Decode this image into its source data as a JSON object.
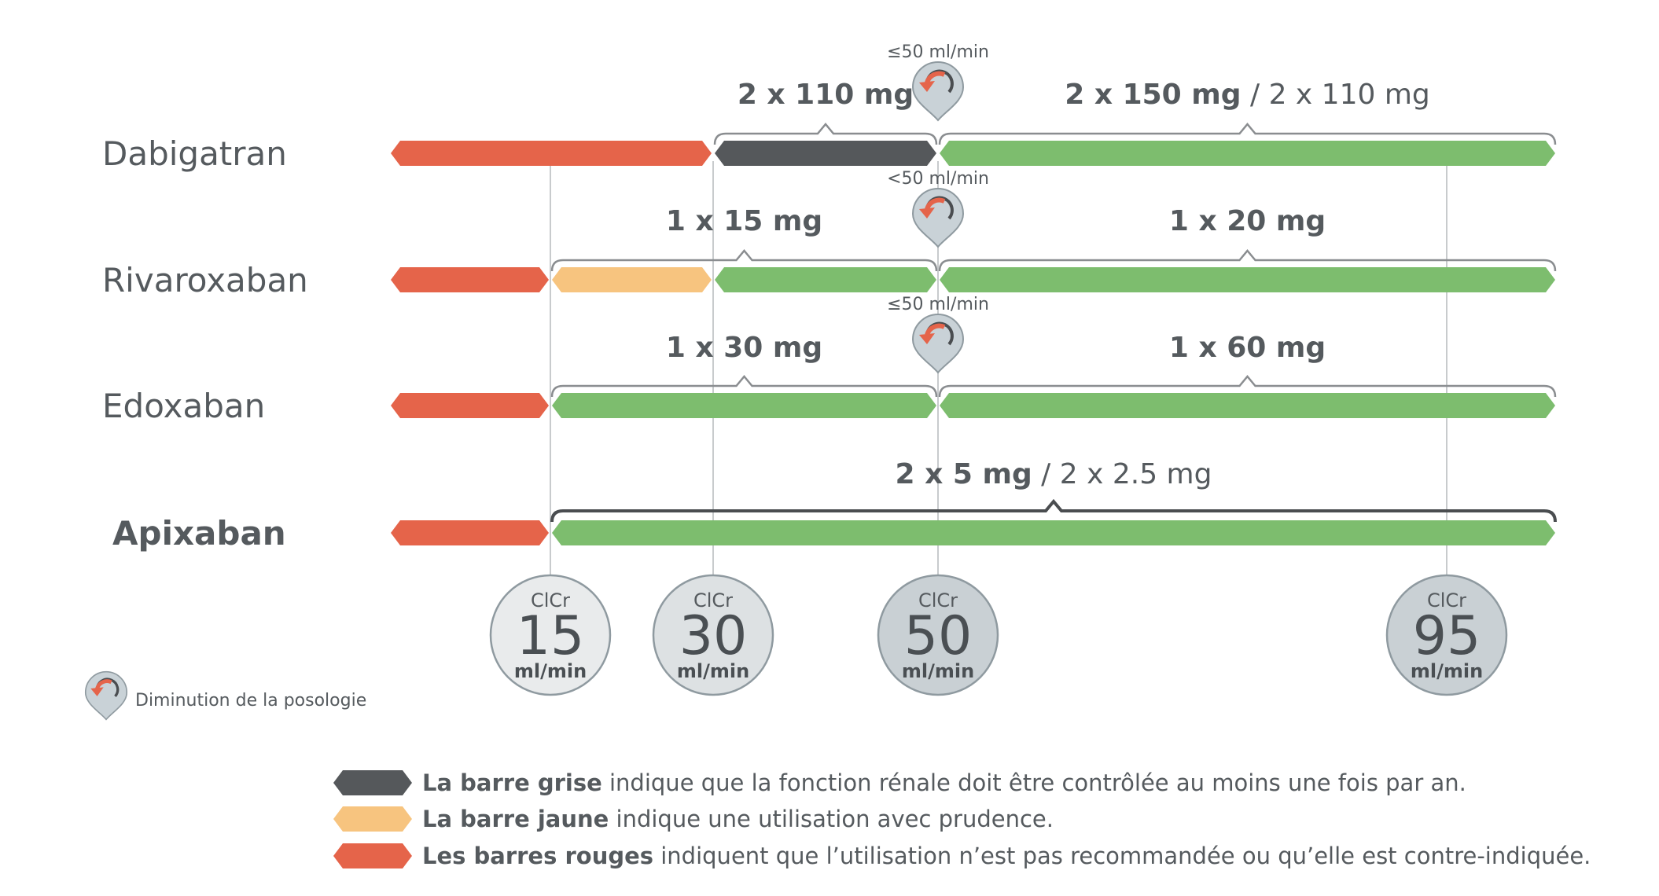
{
  "colors": {
    "red": "#e5644a",
    "gray": "#55585b",
    "yellow": "#f7c47f",
    "green": "#7dbd6e",
    "bracket": "#8a8d90",
    "bracket_dark": "#4a4d50",
    "grid": "#c8cbcd",
    "circle_light": "#e9ebec",
    "circle_dark": "#c9d0d4",
    "marker_fill": "#c9d2d7",
    "marker_arrow": "#e5644a"
  },
  "chart_data": {
    "type": "timeline",
    "x_axis_markers": [
      {
        "label_top": "ClCr",
        "value": "15",
        "unit": "ml/min",
        "x": 15
      },
      {
        "label_top": "ClCr",
        "value": "30",
        "unit": "ml/min",
        "x": 30
      },
      {
        "label_top": "ClCr",
        "value": "50",
        "unit": "ml/min",
        "x": 50
      },
      {
        "label_top": "ClCr",
        "value": "95",
        "unit": "ml/min",
        "x": 95
      }
    ],
    "rows": [
      {
        "drug": "Dabigatran",
        "bold_label": false,
        "segments": [
          {
            "from": "min",
            "to": 30,
            "color": "red"
          },
          {
            "from": 30,
            "to": 50,
            "color": "gray"
          },
          {
            "from": 50,
            "to": "max",
            "color": "green"
          }
        ],
        "doses": [
          {
            "bold": "2 x 110 mg",
            "normal": "",
            "from": 30,
            "to": 50
          },
          {
            "bold": "2 x 150 mg",
            "normal": "2 x 110 mg",
            "from": 50,
            "to": "max"
          }
        ],
        "reduction_marker": {
          "at": 50,
          "label": "≤50 ml/min"
        }
      },
      {
        "drug": "Rivaroxaban",
        "bold_label": false,
        "segments": [
          {
            "from": "min",
            "to": 15,
            "color": "red"
          },
          {
            "from": 15,
            "to": 30,
            "color": "yellow"
          },
          {
            "from": 30,
            "to": 50,
            "color": "green"
          },
          {
            "from": 50,
            "to": "max",
            "color": "green"
          }
        ],
        "doses": [
          {
            "bold": "1 x 15 mg",
            "normal": "",
            "from": 15,
            "to": 50
          },
          {
            "bold": "1 x 20 mg",
            "normal": "",
            "from": 50,
            "to": "max"
          }
        ],
        "reduction_marker": {
          "at": 50,
          "label": "<50 ml/min"
        }
      },
      {
        "drug": "Edoxaban",
        "bold_label": false,
        "segments": [
          {
            "from": "min",
            "to": 15,
            "color": "red"
          },
          {
            "from": 15,
            "to": 50,
            "color": "green"
          },
          {
            "from": 50,
            "to": "max",
            "color": "green"
          }
        ],
        "doses": [
          {
            "bold": "1 x 30 mg",
            "normal": "",
            "from": 15,
            "to": 50
          },
          {
            "bold": "1 x 60 mg",
            "normal": "",
            "from": 50,
            "to": "max"
          }
        ],
        "reduction_marker": {
          "at": 50,
          "label": "≤50 ml/min"
        }
      },
      {
        "drug": "Apixaban",
        "bold_label": true,
        "segments": [
          {
            "from": "min",
            "to": 15,
            "color": "red"
          },
          {
            "from": 15,
            "to": "max",
            "color": "green"
          }
        ],
        "doses": [
          {
            "bold": "2 x 5 mg",
            "normal": "2 x 2.5 mg",
            "from": 15,
            "to": "max"
          }
        ],
        "reduction_marker": null
      }
    ]
  },
  "marker_legend": {
    "label": "Diminution de la posologie",
    "icon": "dose-reduction-marker-icon"
  },
  "legend": [
    {
      "color": "gray",
      "bold": "La barre grise",
      "text": " indique que la fonction rénale doit être contrôlée au moins une fois par an."
    },
    {
      "color": "yellow",
      "bold": "La barre jaune",
      "text": " indique une utilisation avec prudence."
    },
    {
      "color": "red",
      "bold": "Les barres rouges",
      "text": " indiquent que l’utilisation n’est pas recommandée ou qu’elle est contre-indiquée."
    }
  ]
}
